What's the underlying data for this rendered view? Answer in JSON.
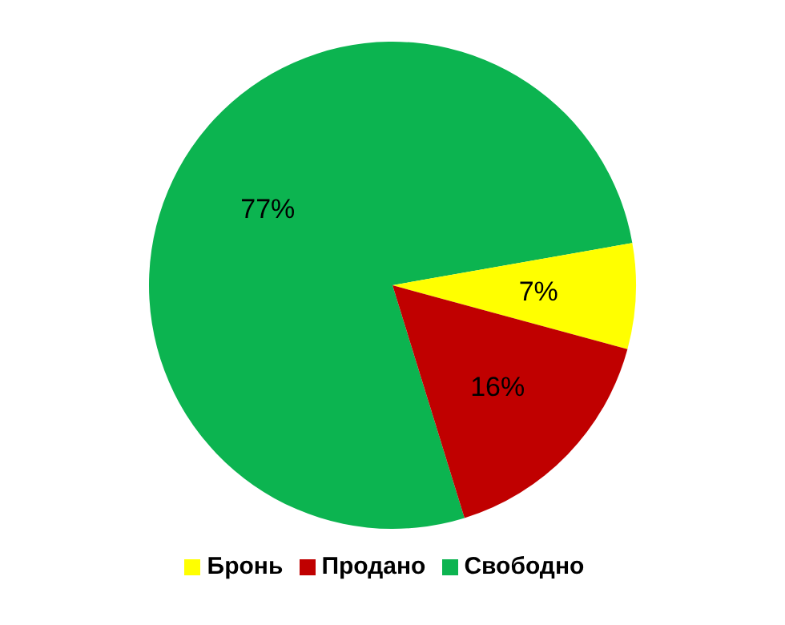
{
  "chart_data": {
    "type": "pie",
    "categories": [
      "Свободно",
      "Бронь",
      "Продано"
    ],
    "values": [
      77,
      7,
      16
    ],
    "colors": [
      "#0cb450",
      "#ffff00",
      "#c00000"
    ],
    "value_labels": [
      "77%",
      "7%",
      "16%"
    ],
    "legend": "bottom"
  }
}
